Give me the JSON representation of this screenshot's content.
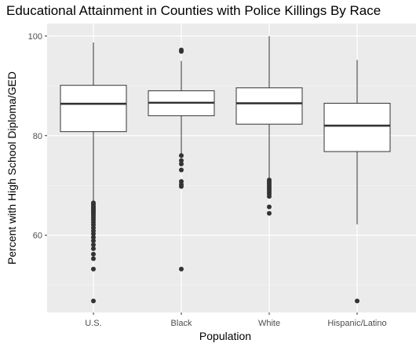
{
  "chart_data": {
    "type": "boxplot",
    "title": "Educational Attainment in Counties with Police Killings By Race",
    "xlabel": "Population",
    "ylabel": "Percent with High School Diploma/GED",
    "ylim": [
      44.5,
      102.5
    ],
    "yticks": [
      60,
      80,
      100
    ],
    "grid": true,
    "categories": [
      "U.S.",
      "Black",
      "White",
      "Hispanic/Latino"
    ],
    "boxes": [
      {
        "category": "U.S.",
        "whisker_low": 66.8,
        "q1": 80.8,
        "median": 86.4,
        "q3": 90.1,
        "whisker_high": 98.7,
        "outliers": [
          66.5,
          66.2,
          65.8,
          65.5,
          65.2,
          64.9,
          64.6,
          64.3,
          63.9,
          63.5,
          63.1,
          62.6,
          62.1,
          61.5,
          60.9,
          60.3,
          59.6,
          58.9,
          58.1,
          57.3,
          56.2,
          55.3,
          53.2,
          46.8
        ]
      },
      {
        "category": "Black",
        "whisker_low": 76.4,
        "q1": 84.0,
        "median": 86.6,
        "q3": 89.0,
        "whisker_high": 95.0,
        "outliers": [
          97.2,
          96.9,
          76.0,
          75.0,
          74.3,
          73.1,
          70.8,
          70.2,
          69.8,
          53.2
        ]
      },
      {
        "category": "White",
        "whisker_low": 71.4,
        "q1": 82.3,
        "median": 86.5,
        "q3": 89.6,
        "whisker_high": 100.0,
        "outliers": [
          71.1,
          70.7,
          70.3,
          69.9,
          69.5,
          69.1,
          68.7,
          68.3,
          67.8,
          65.7,
          64.4
        ]
      },
      {
        "category": "Hispanic/Latino",
        "whisker_low": 62.2,
        "q1": 76.8,
        "median": 82.0,
        "q3": 86.5,
        "whisker_high": 95.2,
        "outliers": [
          46.8
        ]
      }
    ]
  }
}
